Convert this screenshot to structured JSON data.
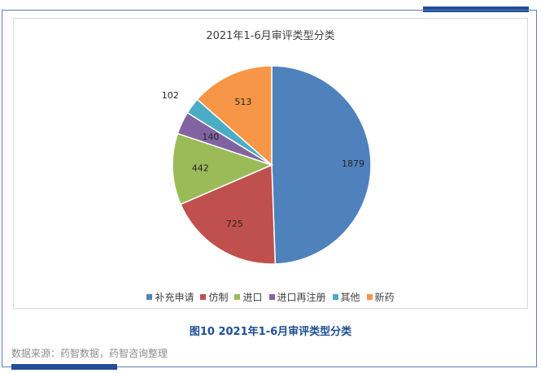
{
  "chart_data": {
    "type": "pie",
    "title": "2021年1-6月审评类型分类",
    "categories": [
      "补充申请",
      "仿制",
      "进口",
      "进口再注册",
      "其他",
      "新药"
    ],
    "values": [
      1879,
      725,
      442,
      140,
      102,
      513
    ],
    "colors": [
      "#4f81bd",
      "#c0504d",
      "#9bbb59",
      "#8064a2",
      "#4bacc6",
      "#f79646"
    ],
    "legend_position": "bottom"
  },
  "figure": {
    "caption": "图10 2021年1-6月审评类型分类",
    "source": "数据来源：药智数据，药智咨询整理"
  }
}
